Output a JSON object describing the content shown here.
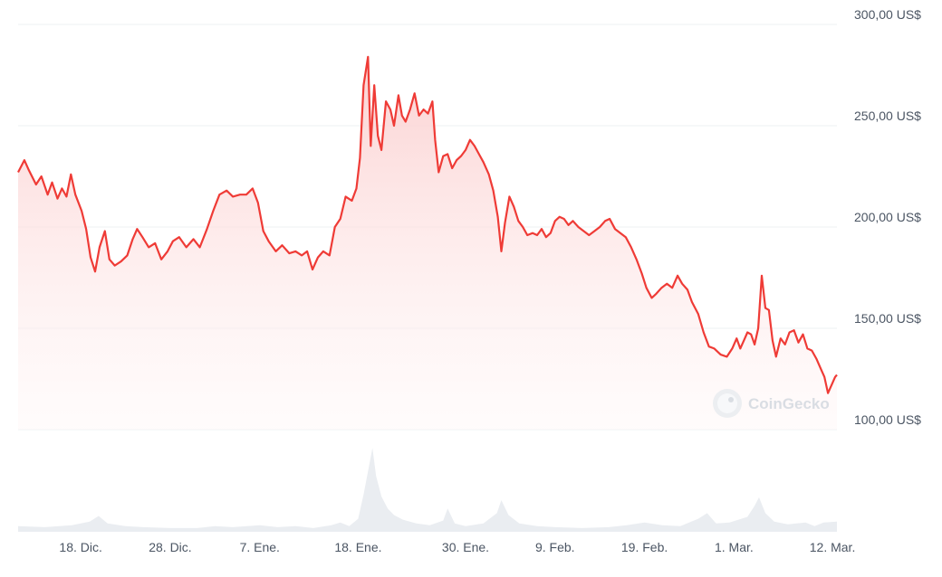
{
  "chart_data": {
    "type": "area",
    "currency_unit": "US$",
    "ylim": [
      100,
      300
    ],
    "y_ticks": [
      "300,00 US$",
      "250,00 US$",
      "200,00 US$",
      "150,00 US$",
      "100,00 US$"
    ],
    "y_tick_values": [
      300,
      250,
      200,
      150,
      100
    ],
    "x_ticks": [
      "18. Dic.",
      "28. Dic.",
      "7. Ene.",
      "18. Ene.",
      "30. Ene.",
      "9. Feb.",
      "19. Feb.",
      "1. Mar.",
      "12. Mar."
    ],
    "x_tick_days": [
      7,
      17,
      27,
      38,
      50,
      60,
      70,
      80,
      91
    ],
    "x_range_days": [
      0,
      91.5
    ],
    "grid": true,
    "watermark": "CoinGecko",
    "colors": {
      "line": "#ef3b36",
      "fill_top": "#fbcfcf",
      "volume": "#eaedf1",
      "grid": "#eef0f3"
    },
    "series": [
      {
        "values": [
          [
            0,
            227
          ],
          [
            0.7,
            233
          ],
          [
            1.2,
            228
          ],
          [
            2,
            221
          ],
          [
            2.6,
            225
          ],
          [
            3.3,
            216
          ],
          [
            3.8,
            222
          ],
          [
            4.4,
            214
          ],
          [
            4.9,
            219
          ],
          [
            5.4,
            215
          ],
          [
            5.9,
            226
          ],
          [
            6.4,
            216
          ],
          [
            7.1,
            208
          ],
          [
            7.6,
            199
          ],
          [
            8.1,
            185
          ],
          [
            8.6,
            178
          ],
          [
            9.1,
            190
          ],
          [
            9.7,
            198
          ],
          [
            10.2,
            184
          ],
          [
            10.8,
            181
          ],
          [
            11.5,
            183
          ],
          [
            12.2,
            186
          ],
          [
            12.8,
            194
          ],
          [
            13.3,
            199
          ],
          [
            13.9,
            195
          ],
          [
            14.6,
            190
          ],
          [
            15.3,
            192
          ],
          [
            16,
            184
          ],
          [
            16.7,
            188
          ],
          [
            17.3,
            193
          ],
          [
            18,
            195
          ],
          [
            18.8,
            190
          ],
          [
            19.6,
            194
          ],
          [
            20.3,
            190
          ],
          [
            21.1,
            199
          ],
          [
            21.8,
            208
          ],
          [
            22.5,
            216
          ],
          [
            23.3,
            218
          ],
          [
            24,
            215
          ],
          [
            24.8,
            216
          ],
          [
            25.5,
            216
          ],
          [
            26.2,
            219
          ],
          [
            26.8,
            212
          ],
          [
            27.4,
            198
          ],
          [
            28,
            193
          ],
          [
            28.8,
            188
          ],
          [
            29.5,
            191
          ],
          [
            30.3,
            187
          ],
          [
            31,
            188
          ],
          [
            31.7,
            186
          ],
          [
            32.3,
            188
          ],
          [
            32.9,
            179
          ],
          [
            33.5,
            185
          ],
          [
            34.1,
            188
          ],
          [
            34.8,
            186
          ],
          [
            35.4,
            200
          ],
          [
            36,
            204
          ],
          [
            36.6,
            215
          ],
          [
            37.3,
            213
          ],
          [
            37.8,
            219
          ],
          [
            38.2,
            234
          ],
          [
            38.6,
            270
          ],
          [
            39.1,
            284
          ],
          [
            39.4,
            240
          ],
          [
            39.8,
            270
          ],
          [
            40.2,
            245
          ],
          [
            40.6,
            238
          ],
          [
            41.1,
            262
          ],
          [
            41.6,
            258
          ],
          [
            42,
            250
          ],
          [
            42.5,
            265
          ],
          [
            42.9,
            255
          ],
          [
            43.3,
            252
          ],
          [
            43.8,
            258
          ],
          [
            44.3,
            266
          ],
          [
            44.8,
            255
          ],
          [
            45.3,
            258
          ],
          [
            45.8,
            256
          ],
          [
            46.3,
            262
          ],
          [
            46.6,
            243
          ],
          [
            47,
            227
          ],
          [
            47.5,
            235
          ],
          [
            48,
            236
          ],
          [
            48.5,
            229
          ],
          [
            49,
            233
          ],
          [
            49.5,
            235
          ],
          [
            50,
            238
          ],
          [
            50.5,
            243
          ],
          [
            51,
            240
          ],
          [
            51.5,
            236
          ],
          [
            52,
            232
          ],
          [
            52.6,
            226
          ],
          [
            53.1,
            218
          ],
          [
            53.6,
            205
          ],
          [
            54,
            188
          ],
          [
            54.4,
            202
          ],
          [
            54.9,
            215
          ],
          [
            55.4,
            210
          ],
          [
            55.9,
            203
          ],
          [
            56.4,
            200
          ],
          [
            56.9,
            196
          ],
          [
            57.5,
            197
          ],
          [
            58,
            196
          ],
          [
            58.5,
            199
          ],
          [
            59,
            195
          ],
          [
            59.5,
            197
          ],
          [
            60,
            203
          ],
          [
            60.5,
            205
          ],
          [
            61,
            204
          ],
          [
            61.5,
            201
          ],
          [
            62,
            203
          ],
          [
            62.6,
            200
          ],
          [
            63.2,
            198
          ],
          [
            63.8,
            196
          ],
          [
            64.4,
            198
          ],
          [
            65,
            200
          ],
          [
            65.6,
            203
          ],
          [
            66.1,
            204
          ],
          [
            66.7,
            199
          ],
          [
            67.3,
            197
          ],
          [
            67.9,
            195
          ],
          [
            68.5,
            190
          ],
          [
            69.1,
            184
          ],
          [
            69.7,
            177
          ],
          [
            70.2,
            170
          ],
          [
            70.8,
            165
          ],
          [
            71.3,
            167
          ],
          [
            71.9,
            170
          ],
          [
            72.5,
            172
          ],
          [
            73.1,
            170
          ],
          [
            73.7,
            176
          ],
          [
            74.2,
            172
          ],
          [
            74.8,
            169
          ],
          [
            75.3,
            163
          ],
          [
            76,
            157
          ],
          [
            76.6,
            148
          ],
          [
            77.2,
            141
          ],
          [
            77.8,
            140
          ],
          [
            78.5,
            137
          ],
          [
            79.2,
            136
          ],
          [
            79.8,
            140
          ],
          [
            80.3,
            145
          ],
          [
            80.7,
            140
          ],
          [
            81.1,
            144
          ],
          [
            81.5,
            148
          ],
          [
            81.9,
            147
          ],
          [
            82.3,
            142
          ],
          [
            82.7,
            150
          ],
          [
            83.1,
            176
          ],
          [
            83.5,
            160
          ],
          [
            83.9,
            159
          ],
          [
            84.3,
            144
          ],
          [
            84.7,
            136
          ],
          [
            85.2,
            145
          ],
          [
            85.7,
            142
          ],
          [
            86.2,
            148
          ],
          [
            86.7,
            149
          ],
          [
            87.2,
            143
          ],
          [
            87.7,
            147
          ],
          [
            88.2,
            140
          ],
          [
            88.7,
            139
          ],
          [
            89.2,
            135
          ],
          [
            89.7,
            130
          ],
          [
            90.1,
            126
          ],
          [
            90.5,
            118
          ],
          [
            90.9,
            122
          ],
          [
            91.3,
            126
          ],
          [
            91.5,
            127
          ]
        ]
      }
    ],
    "volume_profile": [
      [
        0,
        6
      ],
      [
        3,
        5
      ],
      [
        6,
        7
      ],
      [
        8,
        11
      ],
      [
        9,
        17
      ],
      [
        10,
        9
      ],
      [
        12,
        6
      ],
      [
        14,
        5
      ],
      [
        17,
        4
      ],
      [
        20,
        4
      ],
      [
        22,
        6
      ],
      [
        24,
        5
      ],
      [
        27,
        7
      ],
      [
        29,
        5
      ],
      [
        31,
        6
      ],
      [
        33,
        4
      ],
      [
        35,
        7
      ],
      [
        36,
        10
      ],
      [
        37,
        6
      ],
      [
        38,
        14
      ],
      [
        38.6,
        40
      ],
      [
        39.2,
        70
      ],
      [
        39.6,
        90
      ],
      [
        40,
        60
      ],
      [
        40.6,
        38
      ],
      [
        41.3,
        25
      ],
      [
        42,
        18
      ],
      [
        43,
        13
      ],
      [
        44.5,
        9
      ],
      [
        46,
        7
      ],
      [
        47.5,
        12
      ],
      [
        48,
        25
      ],
      [
        48.8,
        9
      ],
      [
        50,
        6
      ],
      [
        52,
        9
      ],
      [
        53.5,
        20
      ],
      [
        54,
        34
      ],
      [
        54.8,
        18
      ],
      [
        56,
        9
      ],
      [
        58,
        6
      ],
      [
        60,
        5
      ],
      [
        63,
        4
      ],
      [
        66,
        5
      ],
      [
        68,
        7
      ],
      [
        70,
        10
      ],
      [
        72,
        7
      ],
      [
        74,
        6
      ],
      [
        76,
        14
      ],
      [
        77,
        20
      ],
      [
        78,
        9
      ],
      [
        79.5,
        10
      ],
      [
        80.5,
        13
      ],
      [
        81.5,
        16
      ],
      [
        82.3,
        28
      ],
      [
        82.8,
        37
      ],
      [
        83.5,
        20
      ],
      [
        84.5,
        11
      ],
      [
        86,
        8
      ],
      [
        88,
        10
      ],
      [
        89,
        6
      ],
      [
        90,
        10
      ],
      [
        91.5,
        11
      ]
    ]
  }
}
